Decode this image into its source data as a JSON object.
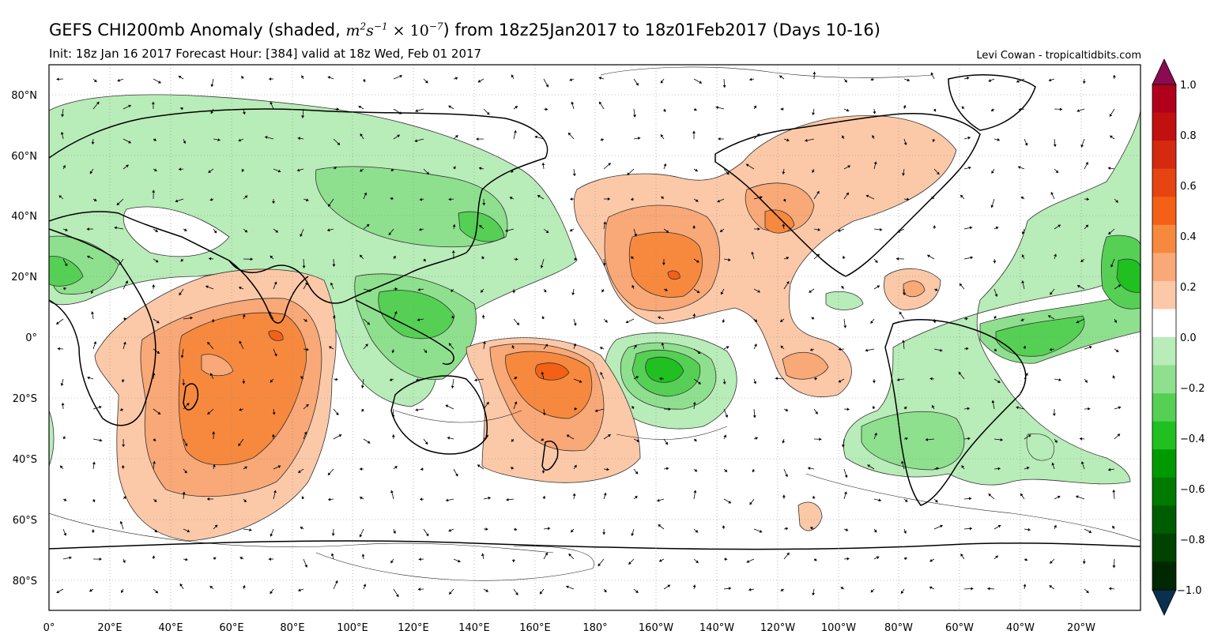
{
  "title": {
    "prefix": "GEFS CHI200mb Anomaly (shaded, ",
    "units_m": "m",
    "units_m_exp": "2",
    "units_s": "s",
    "units_s_exp": "−1",
    "units_times": " × 10",
    "units_pow": "−7",
    "suffix": ") from 18z25Jan2017 to 18z01Feb2017 (Days 10-16)"
  },
  "subtitle": "Init: 18z Jan 16 2017 Forecast Hour: [384] valid at 18z Wed, Feb 01 2017",
  "credit": "Levi Cowan - tropicaltidbits.com",
  "map": {
    "lat_labels": [
      "80°N",
      "60°N",
      "40°N",
      "20°N",
      "0°",
      "20°S",
      "40°S",
      "60°S",
      "80°S"
    ],
    "lon_labels": [
      "0°",
      "20°E",
      "40°E",
      "60°E",
      "80°E",
      "100°E",
      "120°E",
      "140°E",
      "160°E",
      "180°",
      "160°W",
      "140°W",
      "120°W",
      "100°W",
      "80°W",
      "60°W",
      "40°W",
      "20°W"
    ]
  },
  "colorbar": {
    "ticks": [
      "1.0",
      "0.8",
      "0.6",
      "0.4",
      "0.2",
      "0.0",
      "−0.2",
      "−0.4",
      "−0.6",
      "−0.8",
      "−1.0"
    ],
    "colors_top_to_bottom": [
      "#b0001c",
      "#c01010",
      "#d42a10",
      "#e64410",
      "#f36016",
      "#f7893e",
      "#f9a877",
      "#fbc9a8",
      "#ffffff",
      "#b8ecb8",
      "#8ee08e",
      "#55d055",
      "#20c020",
      "#009a00",
      "#007a00",
      "#005c00",
      "#004200",
      "#002800"
    ],
    "overflow_top": "#8b0a50",
    "overflow_bottom": "#0a3050"
  },
  "colors": {
    "pos_1": "#fbc9a8",
    "pos_2": "#f9a877",
    "pos_3": "#f7893e",
    "pos_4": "#f36016",
    "pos_5": "#d42a10",
    "neg_1": "#b8ecb8",
    "neg_2": "#8ee08e",
    "neg_3": "#55d055",
    "neg_4": "#20c020",
    "neg_5": "#009a00"
  }
}
